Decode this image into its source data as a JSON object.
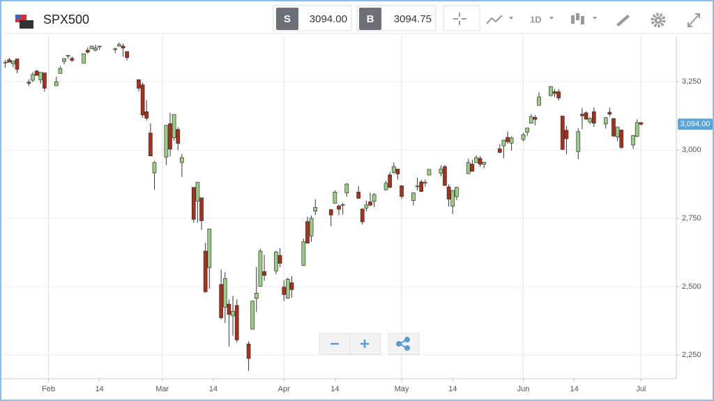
{
  "header": {
    "symbol": "SPX500",
    "sell_label": "S",
    "sell_price": "3094.00",
    "buy_label": "B",
    "buy_price": "3094.75",
    "timeframe": "1D"
  },
  "chart_data": {
    "type": "candlestick",
    "x": [
      21,
      22,
      23,
      24,
      27,
      28,
      29,
      30,
      31,
      34,
      35,
      36,
      37,
      38,
      41,
      42,
      43,
      44,
      45,
      49,
      50,
      51,
      52,
      55,
      56,
      57,
      58,
      59,
      62,
      63,
      64,
      65,
      66,
      69,
      70,
      71,
      72,
      73,
      76,
      77,
      78,
      79,
      80,
      83,
      84,
      85,
      86,
      87,
      90,
      91,
      92,
      93,
      94,
      97,
      98,
      99,
      100,
      104,
      105,
      106,
      107,
      108,
      111,
      112,
      113,
      114,
      115,
      118,
      119,
      120,
      121,
      122,
      125,
      126,
      127,
      128,
      129,
      132,
      133,
      134,
      135,
      136,
      139,
      140,
      141,
      142,
      143,
      147,
      148,
      149,
      150,
      153,
      154,
      155,
      156,
      157,
      160,
      161,
      162,
      163,
      164,
      167,
      168,
      169,
      170,
      171,
      174,
      175,
      176,
      177,
      178,
      181,
      182,
      183
    ],
    "open": [
      3321,
      3330,
      3315,
      3333,
      3248,
      3255,
      3289,
      3256,
      3282,
      3235,
      3280,
      3324,
      3344,
      3335,
      3318,
      3365,
      3370,
      3365,
      3378,
      3369,
      3380,
      3380,
      3360,
      3257,
      3238,
      3140,
      3062,
      2916,
      2974,
      3096,
      3045,
      3075,
      2954,
      2863,
      2813,
      2825,
      2630,
      2569,
      2508,
      2425,
      2436,
      2393,
      2431,
      2290,
      2344,
      2457,
      2501,
      2555,
      2558,
      2614,
      2498,
      2458,
      2514,
      2578,
      2738,
      2685,
      2776,
      2782,
      2805,
      2795,
      2799,
      2843,
      2846,
      2784,
      2787,
      2810,
      2812,
      2854,
      2909,
      2918,
      2930,
      2869,
      2815,
      2868,
      2883,
      2879,
      2908,
      2915,
      2939,
      2865,
      2794,
      2829,
      2913,
      2948,
      2953,
      2969,
      2948,
      3004,
      3015,
      3046,
      3025,
      3038,
      3065,
      3098,
      3119,
      3163,
      3199,
      3213,
      3213,
      3124,
      3072,
      2994,
      3131,
      3136,
      3102,
      3140,
      3095,
      3138,
      3115,
      3047,
      3073,
      3018,
      3050,
      3100
    ],
    "high": [
      3329,
      3337,
      3326,
      3334,
      3258,
      3285,
      3293,
      3285,
      3282,
      3268,
      3306,
      3337,
      3347,
      3342,
      3352,
      3375,
      3381,
      3385,
      3380,
      3375,
      3393,
      3389,
      3360,
      3259,
      3247,
      3182,
      3097,
      2959,
      3090,
      3136,
      3130,
      3083,
      2985,
      2863,
      2882,
      2825,
      2660,
      2711,
      2562,
      2553,
      2453,
      2466,
      2453,
      2300,
      2449,
      2572,
      2638,
      2616,
      2631,
      2641,
      2523,
      2533,
      2538,
      2676,
      2756,
      2760,
      2819,
      2782,
      2852,
      2801,
      2806,
      2879,
      2868,
      2785,
      2815,
      2844,
      2842,
      2887,
      2921,
      2954,
      2930,
      2869,
      2844,
      2898,
      2891,
      2892,
      2930,
      2944,
      2945,
      2874,
      2852,
      2865,
      2968,
      2964,
      2980,
      2978,
      2956,
      3021,
      3036,
      3068,
      3049,
      3062,
      3081,
      3131,
      3128,
      3211,
      3233,
      3223,
      3223,
      3124,
      3088,
      3079,
      3154,
      3141,
      3121,
      3156,
      3120,
      3155,
      3116,
      3084,
      3073,
      3054,
      3112,
      3102
    ],
    "low": [
      3301,
      3321,
      3302,
      3281,
      3234,
      3249,
      3271,
      3243,
      3214,
      3235,
      3280,
      3313,
      3334,
      3322,
      3317,
      3352,
      3369,
      3360,
      3366,
      3355,
      3378,
      3341,
      3328,
      3214,
      3118,
      3108,
      2977,
      2855,
      2945,
      2976,
      3034,
      2999,
      2901,
      2734,
      2734,
      2707,
      2478,
      2492,
      2380,
      2367,
      2281,
      2320,
      2295,
      2192,
      2344,
      2407,
      2501,
      2521,
      2545,
      2571,
      2447,
      2455,
      2459,
      2575,
      2657,
      2664,
      2762,
      2721,
      2805,
      2761,
      2764,
      2830,
      2821,
      2727,
      2775,
      2794,
      2791,
      2852,
      2860,
      2912,
      2892,
      2821,
      2797,
      2852,
      2847,
      2866,
      2908,
      2903,
      2869,
      2793,
      2766,
      2816,
      2913,
      2922,
      2953,
      2938,
      2933,
      2988,
      2970,
      3023,
      2998,
      3032,
      3051,
      3098,
      3090,
      3163,
      3196,
      3193,
      3181,
      2999,
      2984,
      2966,
      3076,
      3109,
      3094,
      3084,
      3078,
      3123,
      3047,
      3032,
      3004,
      3004,
      3047,
      3090
    ],
    "close": [
      3321,
      3321,
      3326,
      3295,
      3244,
      3276,
      3273,
      3284,
      3226,
      3249,
      3298,
      3334,
      3346,
      3328,
      3352,
      3358,
      3380,
      3373,
      3380,
      3370,
      3386,
      3373,
      3338,
      3226,
      3128,
      3116,
      2978,
      2954,
      3090,
      3003,
      3130,
      3024,
      2972,
      2746,
      2882,
      2741,
      2481,
      2711,
      2386,
      2529,
      2398,
      2409,
      2305,
      2237,
      2447,
      2476,
      2630,
      2541,
      2627,
      2585,
      2471,
      2527,
      2489,
      2664,
      2659,
      2750,
      2790,
      2762,
      2846,
      2783,
      2800,
      2875,
      2823,
      2737,
      2799,
      2798,
      2837,
      2878,
      2863,
      2939,
      2912,
      2830,
      2843,
      2868,
      2848,
      2881,
      2929,
      2930,
      2870,
      2820,
      2852,
      2863,
      2954,
      2922,
      2972,
      2948,
      2955,
      2991,
      3036,
      3030,
      3044,
      3056,
      3080,
      3122,
      3112,
      3194,
      3232,
      3207,
      3190,
      3002,
      3041,
      3067,
      3125,
      3113,
      3115,
      3098,
      3118,
      3131,
      3051,
      3084,
      3009,
      3053,
      3100,
      3094
    ],
    "up_color": "#9ccb85",
    "down_color": "#a8301c",
    "xlim": [
      20,
      192
    ],
    "xticks": [
      {
        "value": 32,
        "label": "Feb"
      },
      {
        "value": 45,
        "label": "14"
      },
      {
        "value": 61,
        "label": "Mar"
      },
      {
        "value": 74,
        "label": "14"
      },
      {
        "value": 92,
        "label": "Apr"
      },
      {
        "value": 105,
        "label": "14"
      },
      {
        "value": 122,
        "label": "May"
      },
      {
        "value": 135,
        "label": "14"
      },
      {
        "value": 153,
        "label": "Jun"
      },
      {
        "value": 166,
        "label": "14"
      },
      {
        "value": 183,
        "label": "Jul"
      }
    ],
    "ylim": [
      2163,
      3416
    ],
    "yticks": [
      {
        "value": 2250,
        "label": "2,250"
      },
      {
        "value": 2500,
        "label": "2,500"
      },
      {
        "value": 2750,
        "label": "2,750"
      },
      {
        "value": 3000,
        "label": "3,000"
      },
      {
        "value": 3250,
        "label": "3,250"
      }
    ],
    "last_price": {
      "value": 3094,
      "label": "3,094.00"
    },
    "grid": true
  }
}
